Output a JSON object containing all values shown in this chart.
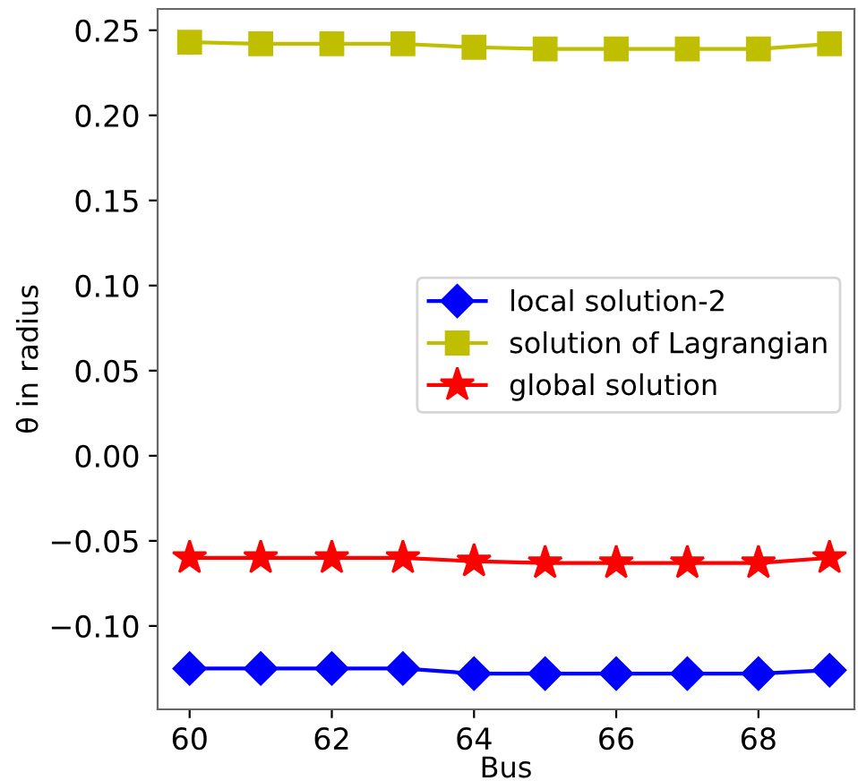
{
  "chart_data": {
    "type": "line",
    "xlabel": "Bus",
    "ylabel": "θ in radius",
    "x": [
      60,
      61,
      62,
      63,
      64,
      65,
      66,
      67,
      68,
      69
    ],
    "series": [
      {
        "name": "local solution-2",
        "color": "#0000ff",
        "marker": "diamond",
        "values": [
          -0.125,
          -0.125,
          -0.125,
          -0.125,
          -0.128,
          -0.128,
          -0.128,
          -0.128,
          -0.128,
          -0.126
        ]
      },
      {
        "name": "solution of Lagrangian",
        "color": "#bfbf00",
        "marker": "square",
        "values": [
          0.243,
          0.242,
          0.242,
          0.242,
          0.24,
          0.239,
          0.239,
          0.239,
          0.239,
          0.242
        ]
      },
      {
        "name": "global solution",
        "color": "#ff0000",
        "marker": "star",
        "values": [
          -0.06,
          -0.06,
          -0.06,
          -0.06,
          -0.062,
          -0.063,
          -0.063,
          -0.063,
          -0.063,
          -0.06
        ]
      }
    ],
    "xlim": [
      59.55,
      69.35
    ],
    "xticks": [
      60,
      62,
      64,
      66,
      68
    ],
    "ylim": [
      -0.149,
      0.2625
    ],
    "yticks": [
      {
        "value": -0.1,
        "label": "−0.10"
      },
      {
        "value": -0.05,
        "label": "−0.05"
      },
      {
        "value": 0,
        "label": "0.00"
      },
      {
        "value": 0.05,
        "label": "0.05"
      },
      {
        "value": 0.1,
        "label": "0.10"
      },
      {
        "value": 0.15,
        "label": "0.15"
      },
      {
        "value": 0.2,
        "label": "0.20"
      },
      {
        "value": 0.25,
        "label": "0.25"
      }
    ],
    "legend": "center right",
    "grid": false
  }
}
